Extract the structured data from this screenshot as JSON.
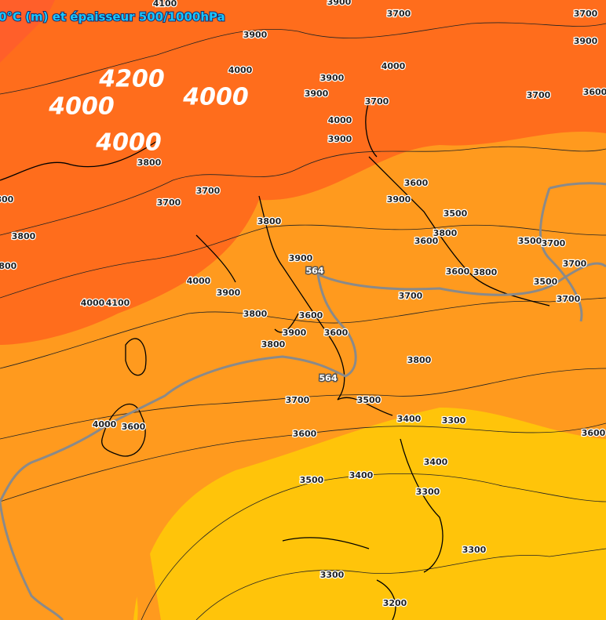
{
  "header": {
    "title": "0°C (m) et épaisseur 500/1000hPa"
  },
  "map": {
    "highlight_labels": [
      "4200",
      "4000",
      "4000",
      "4000"
    ],
    "thickness_labels": [
      "564",
      "564"
    ],
    "contour_labels": [
      "4100",
      "3900",
      "4000",
      "3900",
      "3900",
      "4000",
      "3700",
      "4000",
      "3900",
      "3700",
      "3700",
      "3900",
      "3700",
      "3600",
      "3800",
      "3700",
      "3700",
      "3800",
      "3800",
      "3600",
      "3900",
      "3500",
      "3800",
      "3600",
      "3900",
      "3500",
      "3700",
      "3700",
      "3600",
      "3800",
      "3500",
      "3700",
      "3700",
      "4000",
      "3900",
      "4000",
      "4100",
      "3800",
      "3600",
      "3900",
      "3600",
      "3800",
      "3800",
      "3700",
      "3500",
      "3400",
      "3300",
      "3600",
      "3500",
      "3400",
      "3400",
      "3300",
      "3300",
      "3300",
      "3200",
      "3600",
      "4000",
      "3600",
      "3800",
      "3800",
      "3900"
    ]
  }
}
